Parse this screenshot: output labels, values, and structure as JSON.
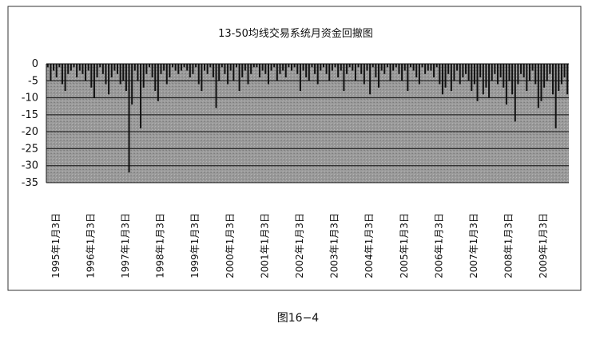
{
  "chart_data": {
    "type": "bar",
    "title": "13-50均线交易系统月资金回撤图",
    "ylim": [
      -35,
      0
    ],
    "yticks": [
      0,
      -5,
      -10,
      -15,
      -20,
      -25,
      -30,
      -35
    ],
    "grid": true,
    "x_tick_labels": [
      "1995年1月3日",
      "1996年1月3日",
      "1997年1月3日",
      "1998年1月3日",
      "1999年1月3日",
      "2000年1月3日",
      "2001年1月3日",
      "2002年1月3日",
      "2003年1月3日",
      "2004年1月3日",
      "2005年1月3日",
      "2006年1月3日",
      "2007年1月3日",
      "2008年1月3日",
      "2009年1月3日"
    ],
    "x_start": "1995-01",
    "bar_frequency": "monthly",
    "values": [
      -1,
      -5,
      -2,
      -4,
      -1,
      -6,
      -8,
      -3,
      -2,
      -1,
      -4,
      -2,
      -3,
      -5,
      -2,
      -7,
      -10,
      -4,
      -1,
      -3,
      -6,
      -9,
      -4,
      -2,
      -3,
      -6,
      -5,
      -8,
      -32,
      -12,
      -2,
      -5,
      -19,
      -7,
      -3,
      -1,
      -4,
      -8,
      -11,
      -3,
      -2,
      -6,
      -4,
      -1,
      -2,
      -3,
      -2,
      -1,
      -2,
      -4,
      -3,
      -1,
      -6,
      -8,
      -2,
      -3,
      -1,
      -4,
      -13,
      -5,
      -1,
      -3,
      -6,
      -2,
      -5,
      -1,
      -8,
      -4,
      -2,
      -6,
      -3,
      -1,
      -1,
      -4,
      -2,
      -3,
      -6,
      -2,
      -1,
      -5,
      -3,
      -2,
      -4,
      -1,
      -2,
      -1,
      -3,
      -8,
      -2,
      -4,
      -5,
      -1,
      -3,
      -6,
      -2,
      -1,
      -3,
      -5,
      -2,
      -1,
      -4,
      -2,
      -8,
      -3,
      -1,
      -2,
      -5,
      -1,
      -3,
      -6,
      -2,
      -9,
      -1,
      -4,
      -7,
      -2,
      -3,
      -1,
      -5,
      -2,
      -1,
      -3,
      -5,
      -2,
      -8,
      -1,
      -2,
      -4,
      -6,
      -1,
      -3,
      -2,
      -2,
      -4,
      -1,
      -6,
      -9,
      -7,
      -3,
      -8,
      -5,
      -2,
      -6,
      -4,
      -3,
      -5,
      -8,
      -6,
      -11,
      -4,
      -9,
      -7,
      -10,
      -5,
      -3,
      -6,
      -4,
      -7,
      -12,
      -5,
      -9,
      -17,
      -6,
      -3,
      -4,
      -8,
      -5,
      -2,
      -6,
      -13,
      -11,
      -7,
      -5,
      -3,
      -9,
      -19,
      -8,
      -6,
      -4,
      -9
    ]
  },
  "caption": "图16−4"
}
